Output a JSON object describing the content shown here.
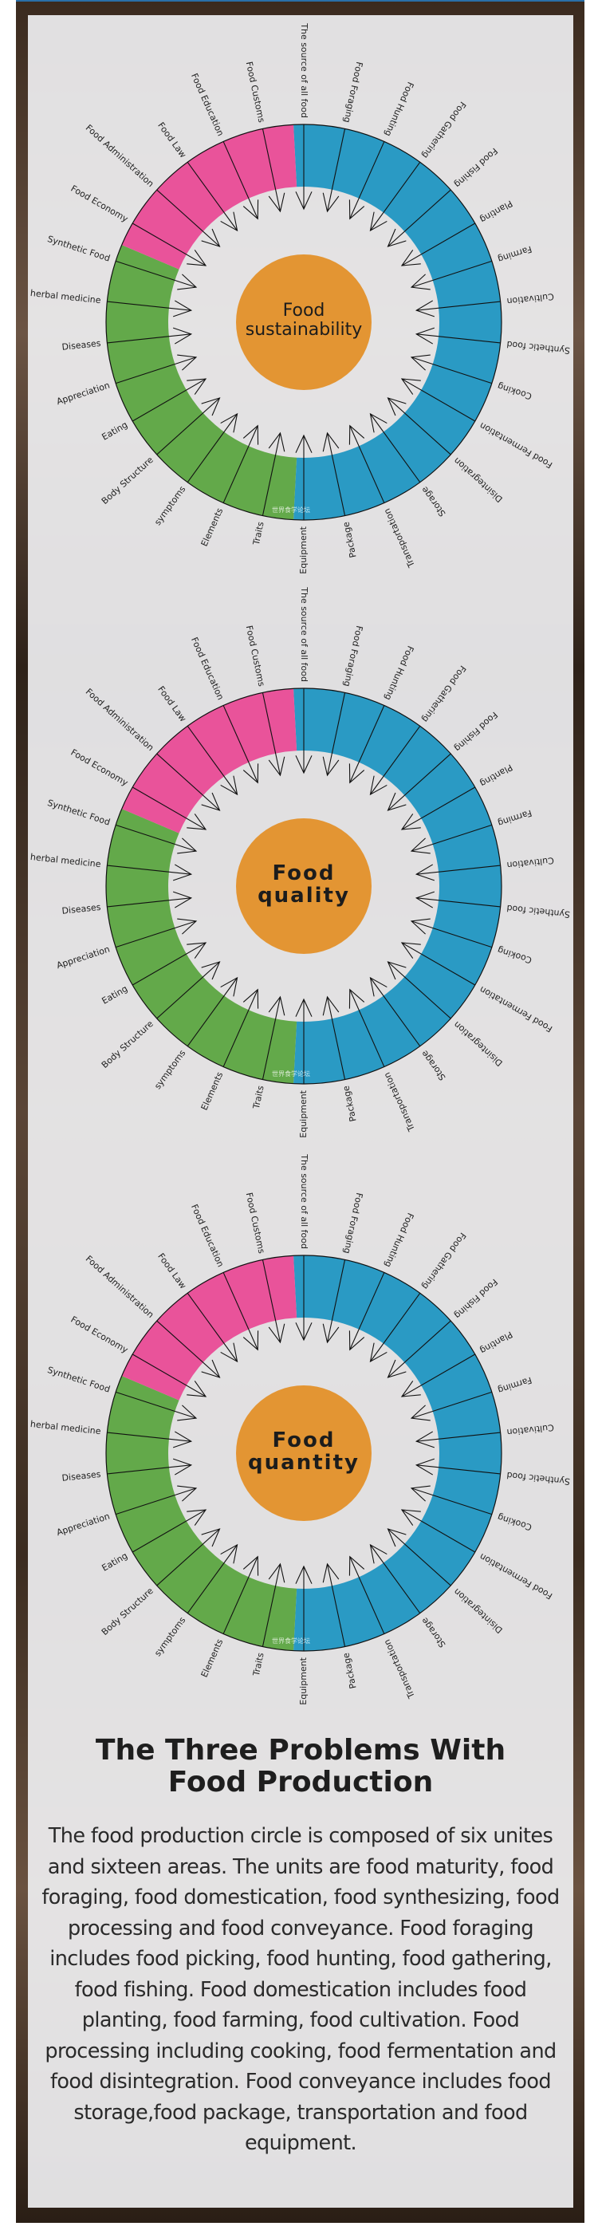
{
  "colors": {
    "blue": "#2a9ac4",
    "green": "#63a94a",
    "pink": "#e9539a",
    "center": "#e39533"
  },
  "labels": [
    "The source of all food",
    "Food Foraging",
    "Food Hunting",
    "Food Gathering",
    "Food Fishing",
    "Planting",
    "Farming",
    "Cultivation",
    "Synthetic food",
    "Cooking",
    "Food Fermentation",
    "Disintegration",
    "Storage",
    "Transportation",
    "Package",
    "Equipment",
    "Traits",
    "Elements",
    "symptoms",
    "Body Structure",
    "Eating",
    "Appreciation",
    "Diseases",
    "herbal medicine",
    "Synthetic Food",
    "Food Economy",
    "Food Administration",
    "Food Law",
    "Food Education",
    "Food Customs"
  ],
  "wheels": [
    {
      "center_line1": "Food",
      "center_line2": "sustainability"
    },
    {
      "center_line1": "Food",
      "center_line2": "quality"
    },
    {
      "center_line1": "Food",
      "center_line2": "quantity"
    }
  ],
  "watermark": "世界食学论坛",
  "article": {
    "title_line1": "The Three Problems With",
    "title_line2": "Food Production",
    "body": "The food production circle is composed of six unites and sixteen areas. The units are food maturity, food foraging, food domestication, food synthesizing, food processing and food conveyance. Food  foraging includes food picking, food hunting, food gathering, food fishing. Food domestication includes food planting, food farming, food cultivation. Food processing including cooking, food fermentation and food disintegration. Food conveyance includes food storage,food package, transportation and food equipment."
  }
}
